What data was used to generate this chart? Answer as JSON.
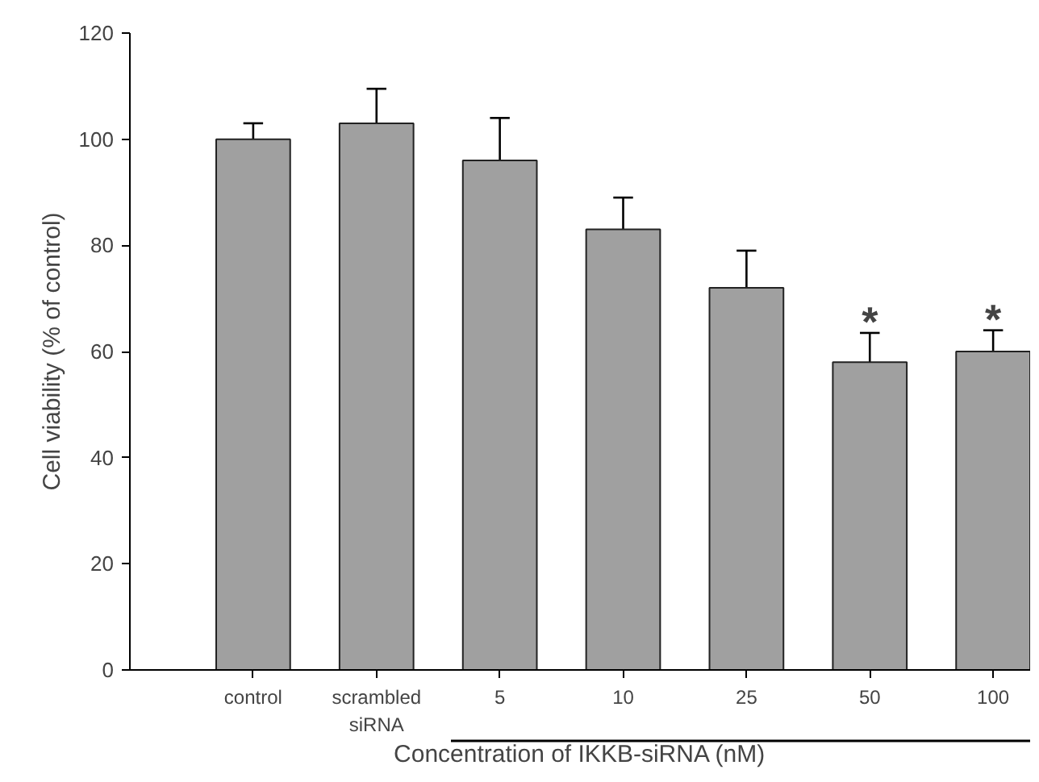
{
  "chart_data": {
    "type": "bar",
    "ylabel": "Cell viability (% of control)",
    "xlabel": "Concentration of IKKB-siRNA (nM)",
    "categories": [
      "control",
      "scrambled\nsiRNA",
      "5",
      "10",
      "25",
      "50",
      "100"
    ],
    "values": [
      100,
      103,
      96,
      83,
      72,
      58,
      60
    ],
    "errors": [
      3,
      6.5,
      8,
      6,
      7,
      5.5,
      4
    ],
    "color": "#a0a0a0",
    "ylim": [
      0,
      120
    ],
    "yticks": [
      0,
      20,
      40,
      60,
      80,
      100,
      120
    ],
    "annotations": [
      {
        "text": "*",
        "x": "50",
        "y": 58
      },
      {
        "text": "*",
        "x": "100",
        "y": 60
      }
    ],
    "grid": false
  }
}
